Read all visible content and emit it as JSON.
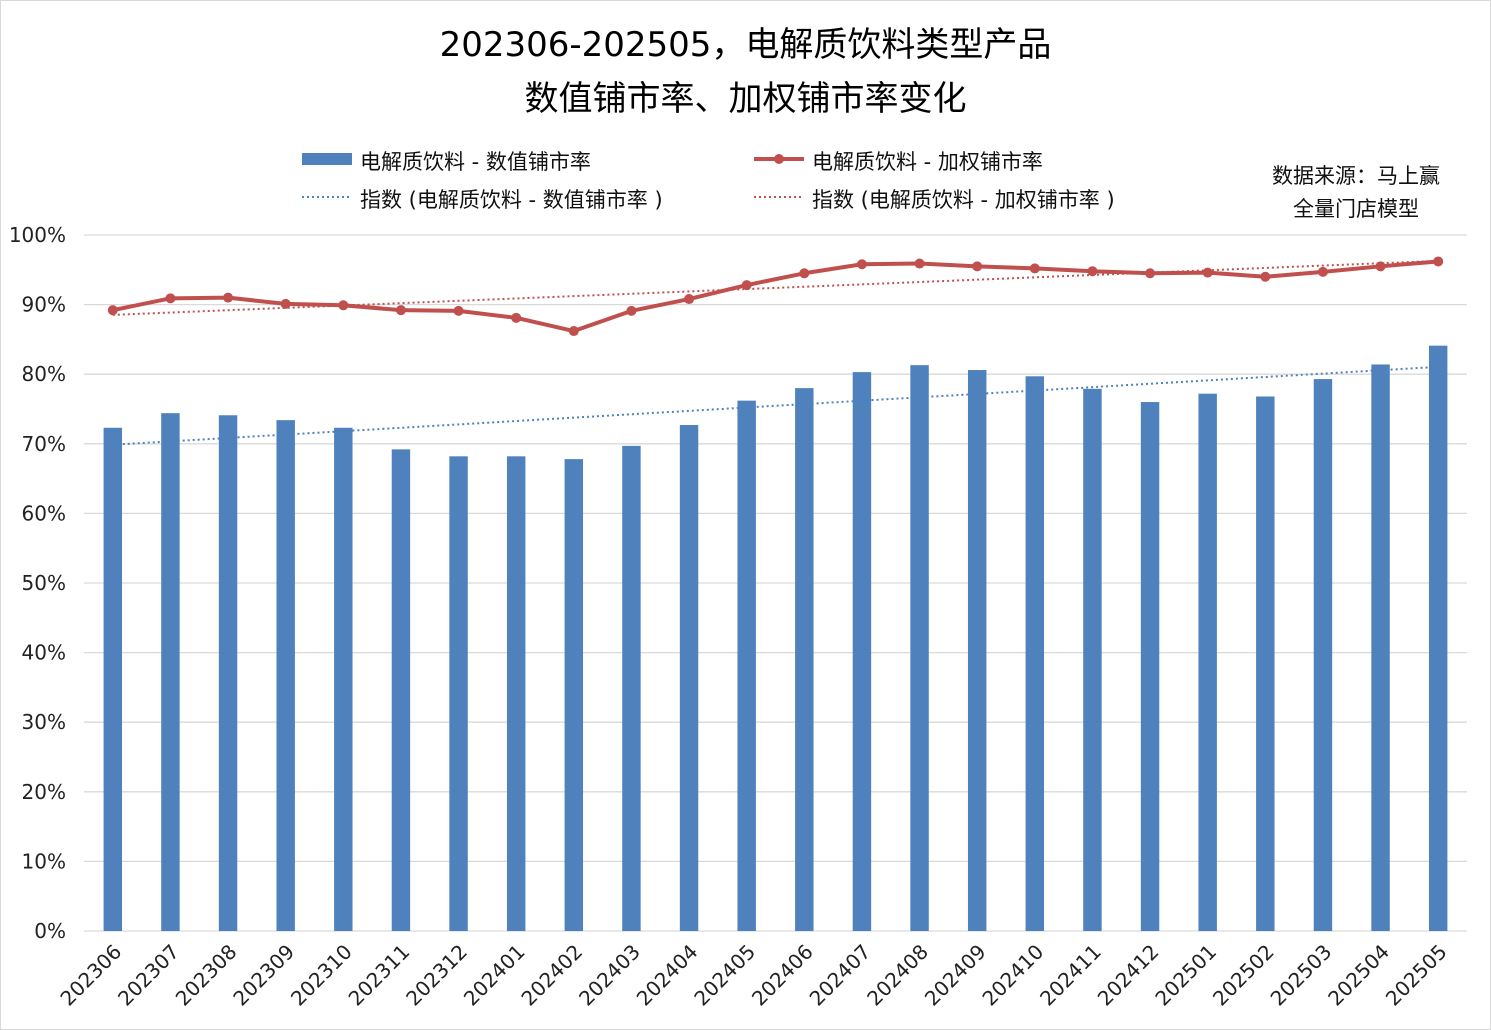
{
  "title_lines": [
    "202306-202505，电解质饮料类型产品",
    "数值铺市率、加权铺市率变化"
  ],
  "source_lines": [
    "数据来源：马上赢",
    "全量门店模型"
  ],
  "legend": {
    "bar": "电解质饮料 - 数值铺市率",
    "line": "电解质饮料 - 加权铺市率",
    "bar_trend": "指数 (电解质饮料 - 数值铺市率 )",
    "line_trend": "指数 (电解质饮料 - 加权铺市率 )"
  },
  "colors": {
    "bar": "#4f81bd",
    "line": "#c0504d",
    "grid": "#d9d9d9"
  },
  "chart_data": {
    "type": "bar",
    "categories": [
      "202306",
      "202307",
      "202308",
      "202309",
      "202310",
      "202311",
      "202312",
      "202401",
      "202402",
      "202403",
      "202404",
      "202405",
      "202406",
      "202407",
      "202408",
      "202409",
      "202410",
      "202411",
      "202412",
      "202501",
      "202502",
      "202503",
      "202504",
      "202505"
    ],
    "series": [
      {
        "name": "电解质饮料 - 数值铺市率",
        "type": "bar",
        "values": [
          72.3,
          74.4,
          74.1,
          73.4,
          72.3,
          69.2,
          68.2,
          68.2,
          67.8,
          69.7,
          72.7,
          76.2,
          78.0,
          80.3,
          81.3,
          80.6,
          79.7,
          77.9,
          76.0,
          77.2,
          76.8,
          79.3,
          81.4,
          84.1
        ]
      },
      {
        "name": "电解质饮料 - 加权铺市率",
        "type": "line",
        "values": [
          89.2,
          90.9,
          91.0,
          90.1,
          89.9,
          89.2,
          89.1,
          88.1,
          86.2,
          89.1,
          90.8,
          92.8,
          94.5,
          95.8,
          95.9,
          95.5,
          95.2,
          94.8,
          94.5,
          94.6,
          94.0,
          94.7,
          95.5,
          96.2
        ]
      },
      {
        "name": "指数 (电解质饮料 - 数值铺市率 )",
        "type": "trend",
        "of": 0
      },
      {
        "name": "指数 (电解质饮料 - 加权铺市率 )",
        "type": "trend",
        "of": 1
      }
    ],
    "y_ticks": [
      "0%",
      "10%",
      "20%",
      "30%",
      "40%",
      "50%",
      "60%",
      "70%",
      "80%",
      "90%",
      "100%"
    ],
    "ylim": [
      0,
      100
    ],
    "grid": true,
    "legend_position": "top"
  }
}
